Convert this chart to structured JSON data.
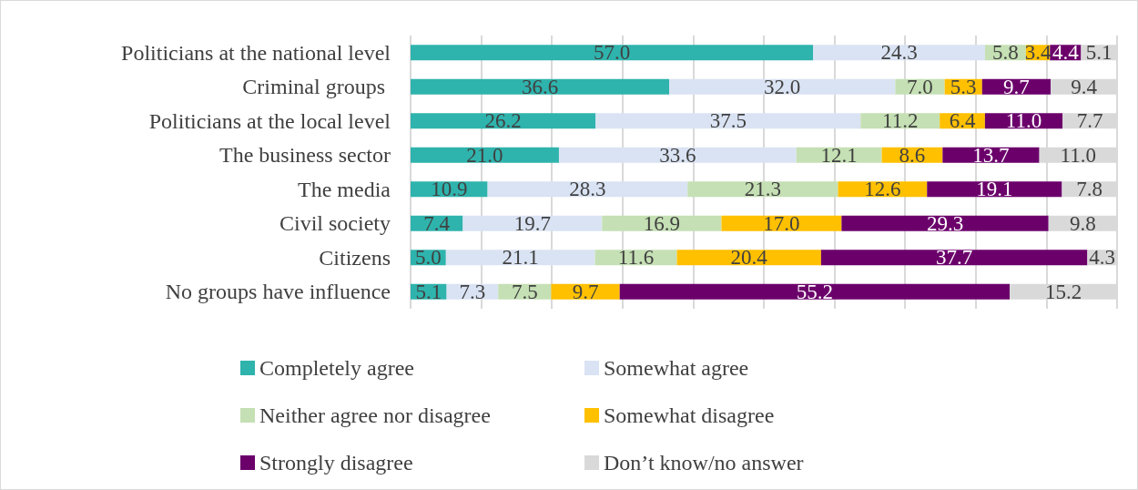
{
  "chart_data": {
    "type": "bar",
    "orientation": "horizontal",
    "stacked": true,
    "categories": [
      "Politicians at the national level",
      "Criminal groups ",
      "Politicians at the local level",
      "The business sector",
      "The media",
      "Civil society",
      "Citizens",
      "No groups have influence"
    ],
    "series": [
      {
        "name": "Completely agree",
        "color": "#2fb3ad",
        "values": [
          57.0,
          36.6,
          26.2,
          21.0,
          10.9,
          7.4,
          5.0,
          5.1
        ],
        "value_labels": [
          "57.0",
          "36.6",
          "26.2",
          "21.0",
          "10.9",
          "7.4",
          "5.0",
          "5.1"
        ]
      },
      {
        "name": "Somewhat agree",
        "color": "#dae3f3",
        "values": [
          24.3,
          32.0,
          37.5,
          33.6,
          28.3,
          19.7,
          21.1,
          7.3
        ],
        "value_labels": [
          "24.3",
          "32.0",
          "37.5",
          "33.6",
          "28.3",
          "19.7",
          "21.1",
          "7.3"
        ]
      },
      {
        "name": "Neither agree nor disagree",
        "color": "#c5e0b4",
        "values": [
          5.8,
          7.0,
          11.2,
          12.1,
          21.3,
          16.9,
          11.6,
          7.5
        ],
        "value_labels": [
          "5.8",
          "7.0",
          "11.2",
          "12.1",
          "21.3",
          "16.9",
          "11.6",
          "7.5"
        ]
      },
      {
        "name": "Somewhat disagree",
        "color": "#ffc000",
        "values": [
          3.4,
          5.3,
          6.4,
          8.6,
          12.6,
          17.0,
          20.4,
          9.7
        ],
        "value_labels": [
          "3.4",
          "5.3",
          "6.4",
          "8.6",
          "12.6",
          "17.0",
          "20.4",
          "9.7"
        ]
      },
      {
        "name": "Strongly disagree",
        "color": "#6b006b",
        "values": [
          4.4,
          9.7,
          11.0,
          13.7,
          19.1,
          29.3,
          37.7,
          55.2
        ],
        "value_labels": [
          "4.4",
          "9.7",
          "11.0",
          "13.7",
          "19.1",
          "29.3",
          "37.7",
          "55.2"
        ]
      },
      {
        "name": "Don’t know/no answer",
        "color": "#d9d9d9",
        "values": [
          5.1,
          9.4,
          7.7,
          11.0,
          7.8,
          9.8,
          4.3,
          15.2
        ],
        "value_labels": [
          "5.1",
          "9.4",
          "7.7",
          "11.0",
          "7.8",
          "9.8",
          "4.3",
          "15.2"
        ]
      }
    ],
    "xlim": [
      0,
      100
    ],
    "xticks": [
      {
        "value": 0,
        "label": null
      },
      {
        "value": 10,
        "label": null
      },
      {
        "value": 20,
        "label": null
      },
      {
        "value": 30,
        "label": null
      },
      {
        "value": 40,
        "label": null
      },
      {
        "value": 50,
        "label": null
      },
      {
        "value": 60,
        "label": null
      },
      {
        "value": 70,
        "label": null
      },
      {
        "value": 80,
        "label": null
      },
      {
        "value": 90,
        "label": null
      },
      {
        "value": 100,
        "label": null
      }
    ],
    "grid": "x",
    "tick_labels": "y",
    "legend": "bottom"
  }
}
